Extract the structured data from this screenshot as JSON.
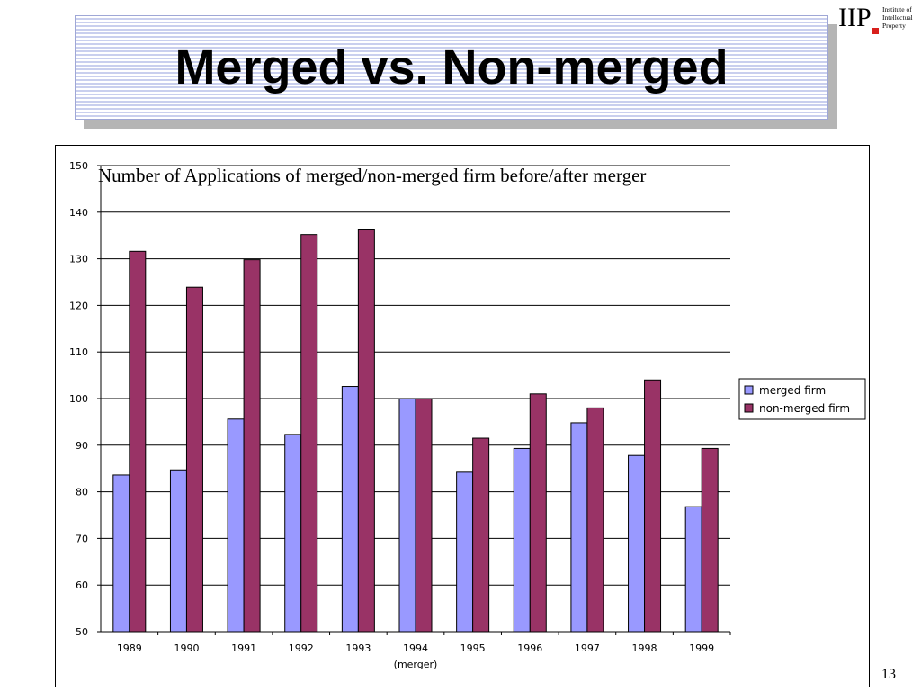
{
  "slide": {
    "title": "Merged vs. Non-merged",
    "page_number": "13"
  },
  "logo": {
    "text": "IIP",
    "subtitle_lines": [
      "Institute of",
      "Intellectual",
      "Property"
    ],
    "dot_color": "#d8201c"
  },
  "chart_data": {
    "type": "bar",
    "title": "Number of Applications of merged/non-merged firm before/after merger",
    "xlabel": "",
    "ylabel": "",
    "categories": [
      "1989",
      "1990",
      "1991",
      "1992",
      "1993",
      "1994",
      "1995",
      "1996",
      "1997",
      "1998",
      "1999"
    ],
    "category_notes": {
      "1994": "(merger)"
    },
    "ylim": [
      50,
      150
    ],
    "yticks": [
      50,
      60,
      70,
      80,
      90,
      100,
      110,
      120,
      130,
      140,
      150
    ],
    "grid": true,
    "legend_position": "right",
    "series": [
      {
        "name": "merged firm",
        "color": "#9999ff",
        "values": [
          83.6,
          84.7,
          95.6,
          92.3,
          102.6,
          100,
          84.2,
          89.3,
          94.8,
          87.8,
          76.8
        ]
      },
      {
        "name": "non-merged firm",
        "color": "#993366",
        "values": [
          131.6,
          123.9,
          129.8,
          135.2,
          136.2,
          100,
          91.5,
          101.0,
          98.0,
          104.0,
          89.3
        ]
      }
    ]
  }
}
